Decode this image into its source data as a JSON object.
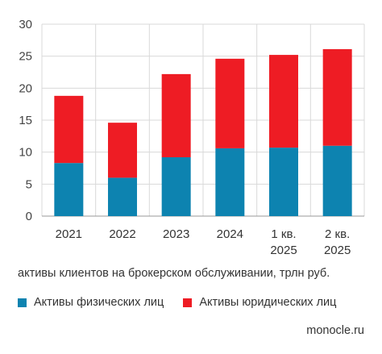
{
  "chart_data": {
    "type": "bar",
    "stacked": true,
    "categories": [
      [
        "2021"
      ],
      [
        "2022"
      ],
      [
        "2023"
      ],
      [
        "2024"
      ],
      [
        "1 кв.",
        "2025"
      ],
      [
        "2 кв.",
        "2025"
      ]
    ],
    "series": [
      {
        "name": "Активы физических лиц",
        "color": "#0d83b0",
        "values": [
          8.3,
          6.0,
          9.2,
          10.6,
          10.7,
          11.0
        ]
      },
      {
        "name": "Активы юридических лиц",
        "color": "#ee1c24",
        "values": [
          10.5,
          8.6,
          13.0,
          14.0,
          14.5,
          15.1
        ]
      }
    ],
    "ylim": [
      0,
      30
    ],
    "yticks": [
      0,
      5,
      10,
      15,
      20,
      25,
      30
    ],
    "grid": true,
    "caption": "активы клиентов на брокерском обслуживании, трлн руб.",
    "legend_position": "bottom"
  },
  "source": "monocle.ru"
}
